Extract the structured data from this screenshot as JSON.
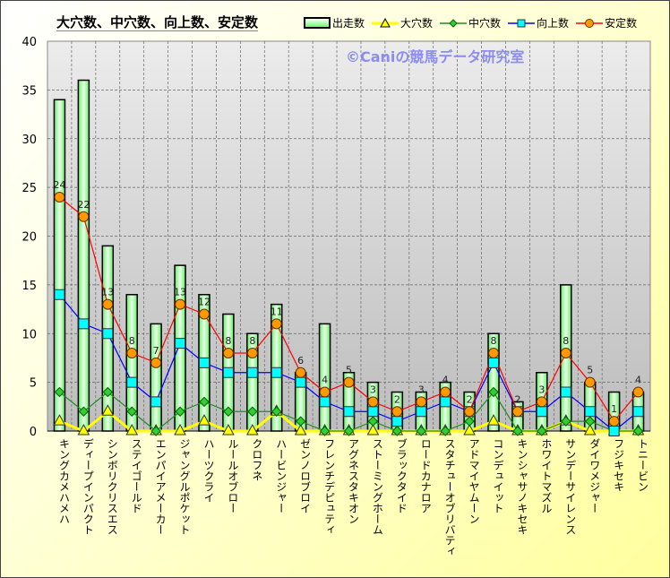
{
  "chart_data": {
    "type": "bar",
    "title": "大穴数、中穴数、向上数、安定数",
    "watermark": "©Caniの競馬データ研究室",
    "xlabel": "",
    "ylabel": "",
    "ylim": [
      0,
      40
    ],
    "yticks": [
      "0",
      "5",
      "10",
      "15",
      "20",
      "25",
      "30",
      "35",
      "40"
    ],
    "grid": true,
    "legend_position": "top-right",
    "categories": [
      "キングカメハメハ",
      "ディープインパクト",
      "シンボリクリスエス",
      "ステイゴールド",
      "エンパイアメーカー",
      "ジャングルポケット",
      "ハーツクライ",
      "ルールオブロー",
      "クロフネ",
      "ハービンジャー",
      "ゼンノロブロイ",
      "フレンチデピュティ",
      "アグネスタキオン",
      "ストーミングホーム",
      "ブラックタイド",
      "ロードカナロア",
      "スタチューオブリバティ",
      "アドマイヤムーン",
      "コンデュイット",
      "キンシャサノキセキ",
      "ホワイトマズル",
      "サンデーサイレンス",
      "ダイワメジャー",
      "フジキセキ",
      "トニービン"
    ],
    "series": [
      {
        "name": "出走数",
        "kind": "bar",
        "color": "#33cc33",
        "values": [
          34,
          36,
          19,
          14,
          11,
          17,
          14,
          12,
          10,
          13,
          6,
          11,
          6,
          5,
          4,
          4,
          5,
          4,
          10,
          3,
          6,
          15,
          5,
          4,
          4
        ]
      },
      {
        "name": "大穴数",
        "kind": "line",
        "marker": "triangle",
        "color": "#ffff00",
        "values": [
          1,
          0,
          2,
          0,
          0,
          0,
          1,
          0,
          0,
          2,
          0,
          0,
          0,
          0,
          0,
          0,
          0,
          0,
          1,
          0,
          0,
          1,
          0,
          0,
          0
        ]
      },
      {
        "name": "中穴数",
        "kind": "line",
        "marker": "diamond",
        "color": "#228b22",
        "values": [
          4,
          2,
          4,
          2,
          0,
          2,
          3,
          2,
          2,
          2,
          1,
          0,
          0,
          1,
          0,
          0,
          0,
          1,
          4,
          0,
          0,
          1,
          1,
          0,
          0
        ]
      },
      {
        "name": "向上数",
        "kind": "line",
        "marker": "square",
        "color": "#0000ff",
        "values": [
          14,
          11,
          10,
          5,
          3,
          9,
          7,
          6,
          6,
          6,
          5,
          3,
          2,
          2,
          1,
          2,
          3,
          2,
          7,
          2,
          2,
          4,
          2,
          0,
          2
        ]
      },
      {
        "name": "安定数",
        "kind": "line",
        "marker": "circle",
        "color": "#ff0000",
        "labels": true,
        "values": [
          24,
          22,
          13,
          8,
          7,
          13,
          12,
          8,
          8,
          11,
          6,
          4,
          5,
          3,
          2,
          3,
          4,
          2,
          8,
          2,
          3,
          8,
          5,
          1,
          4
        ]
      }
    ]
  }
}
